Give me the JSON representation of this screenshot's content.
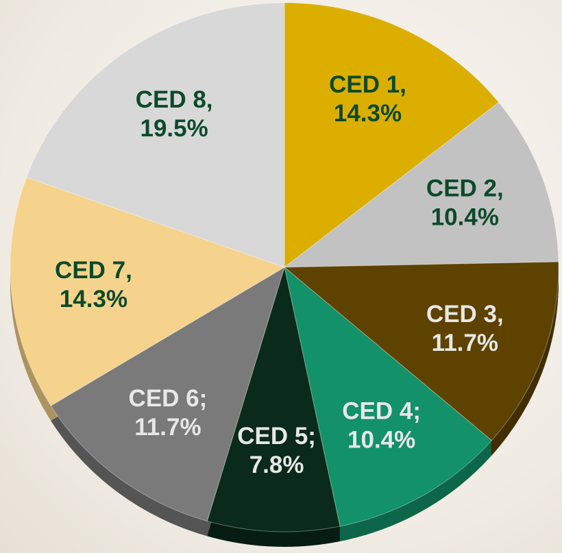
{
  "chart_data": {
    "type": "pie",
    "categories": [
      "CED 1,",
      "CED 2,",
      "CED 3,",
      "CED 4;",
      "CED 5;",
      "CED 6;",
      "CED 7,",
      "CED 8,"
    ],
    "values": [
      14.3,
      10.4,
      11.7,
      10.4,
      7.8,
      11.7,
      14.3,
      19.5
    ],
    "value_labels": [
      "14.3%",
      "10.4%",
      "11.7%",
      "10.4%",
      "7.8%",
      "11.7%",
      "14.3%",
      "19.5%"
    ],
    "colors": [
      "#dcae00",
      "#c2c2c2",
      "#5e4200",
      "#139169",
      "#0a2a1b",
      "#7a7a7a",
      "#f5d38c",
      "#d8d8d8"
    ],
    "label_colors": [
      "#0b4a2a",
      "#0b4a2a",
      "#e8e8e8",
      "#e8e8e8",
      "#e8e8e8",
      "#e8e8e8",
      "#0b4a2a",
      "#0b4a2a"
    ]
  }
}
